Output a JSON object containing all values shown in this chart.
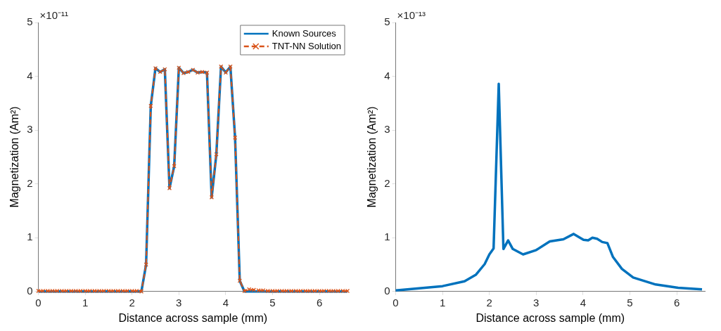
{
  "chart_data": [
    {
      "type": "line",
      "xlabel": "Distance across sample (mm)",
      "ylabel": "Magnetization (Am²)",
      "annotations": [
        "×10⁻¹¹"
      ],
      "xlim": [
        0,
        6.6
      ],
      "xticks": [
        0,
        1,
        2,
        3,
        4,
        5,
        6
      ],
      "ylim": [
        0,
        5
      ],
      "yticks": [
        0,
        1,
        2,
        3,
        4,
        5
      ],
      "legend": "top right",
      "x": [
        0,
        0.1,
        0.2,
        0.3,
        0.4,
        0.5,
        0.6,
        0.7,
        0.8,
        0.9,
        1,
        1.1,
        1.2,
        1.3,
        1.4,
        1.5,
        1.6,
        1.7,
        1.8,
        1.9,
        2,
        2.1,
        2.2,
        2.3,
        2.4,
        2.5,
        2.6,
        2.7,
        2.8,
        2.9,
        3,
        3.1,
        3.2,
        3.3,
        3.4,
        3.5,
        3.6,
        3.7,
        3.8,
        3.9,
        4,
        4.1,
        4.2,
        4.3,
        4.4,
        4.5,
        4.6,
        4.7,
        4.8,
        4.9,
        5,
        5.1,
        5.2,
        5.3,
        5.4,
        5.5,
        5.6,
        5.7,
        5.8,
        5.9,
        6,
        6.1,
        6.2,
        6.3,
        6.4,
        6.5,
        6.6
      ],
      "series": [
        {
          "name": "Known Sources",
          "color": "#0072bd",
          "marker": "none",
          "line_style": "solid",
          "values": [
            0,
            0,
            0,
            0,
            0,
            0,
            0,
            0,
            0,
            0,
            0,
            0,
            0,
            0,
            0,
            0,
            0,
            0,
            0,
            0,
            0,
            0,
            0,
            0.5,
            3.45,
            4.15,
            4.08,
            4.13,
            1.92,
            2.33,
            4.16,
            4.06,
            4.08,
            4.12,
            4.07,
            4.08,
            4.07,
            1.75,
            2.55,
            4.18,
            4.07,
            4.18,
            2.86,
            0.2,
            0,
            0,
            0,
            0,
            0,
            0,
            0,
            0,
            0,
            0,
            0,
            0,
            0,
            0,
            0,
            0,
            0,
            0,
            0,
            0,
            0,
            0,
            0
          ]
        },
        {
          "name": "TNT-NN Solution",
          "color": "#d95319",
          "marker": "cross",
          "line_style": "dashed",
          "values": [
            0.01,
            0.01,
            0.01,
            0.01,
            0.01,
            0.01,
            0.01,
            0.01,
            0.01,
            0.01,
            0.01,
            0.01,
            0.01,
            0.01,
            0.01,
            0.01,
            0.01,
            0.01,
            0.01,
            0.01,
            0.01,
            0.01,
            0,
            0.5,
            3.45,
            4.15,
            4.08,
            4.13,
            1.92,
            2.33,
            4.16,
            4.06,
            4.08,
            4.12,
            4.07,
            4.08,
            4.07,
            1.75,
            2.55,
            4.18,
            4.07,
            4.18,
            2.86,
            0.2,
            0.01,
            0.04,
            0.03,
            0.02,
            0.02,
            0.01,
            0.01,
            0.01,
            0.01,
            0.01,
            0.01,
            0.01,
            0.01,
            0.01,
            0.01,
            0.01,
            0.01,
            0.01,
            0.01,
            0.01,
            0.01,
            0.01,
            0.01
          ]
        }
      ]
    },
    {
      "type": "line",
      "xlabel": "Distance across sample (mm)",
      "ylabel": "Magnetization (Am²)",
      "annotations": [
        "×10⁻¹³"
      ],
      "xlim": [
        0,
        6.6
      ],
      "xticks": [
        0,
        1,
        2,
        3,
        4,
        5,
        6
      ],
      "ylim": [
        0,
        5
      ],
      "yticks": [
        0,
        1,
        2,
        3,
        4,
        5
      ],
      "x": [
        0,
        0.5,
        1,
        1.47,
        1.71,
        1.9,
        2,
        2.09,
        2.2,
        2.3,
        2.4,
        2.5,
        2.72,
        3,
        3.29,
        3.58,
        3.8,
        4.01,
        4.11,
        4.2,
        4.3,
        4.41,
        4.52,
        4.64,
        4.83,
        5.07,
        5.55,
        6.03,
        6.54
      ],
      "series": [
        {
          "color": "#0072bd",
          "marker": "none",
          "line_style": "solid",
          "values": [
            0.02,
            0.06,
            0.1,
            0.19,
            0.31,
            0.51,
            0.69,
            0.8,
            3.86,
            0.79,
            0.95,
            0.79,
            0.69,
            0.77,
            0.93,
            0.97,
            1.07,
            0.96,
            0.95,
            1,
            0.98,
            0.92,
            0.9,
            0.64,
            0.42,
            0.26,
            0.13,
            0.07,
            0.04
          ]
        }
      ]
    }
  ]
}
